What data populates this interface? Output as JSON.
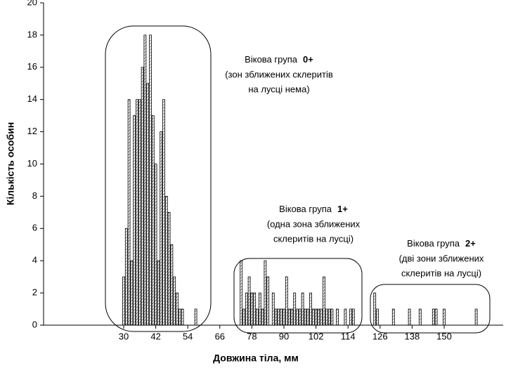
{
  "chart_data": {
    "type": "bar",
    "xlabel": "Довжина тіла, мм",
    "ylabel": "Кількість особин",
    "x": [
      30,
      31,
      32,
      33,
      34,
      35,
      36,
      37,
      38,
      39,
      40,
      41,
      42,
      43,
      44,
      45,
      46,
      47,
      48,
      49,
      50,
      51,
      52,
      57,
      74,
      75,
      76,
      77,
      78,
      79,
      80,
      81,
      82,
      83,
      84,
      86,
      87,
      88,
      89,
      90,
      91,
      92,
      93,
      94,
      95,
      96,
      97,
      98,
      99,
      100,
      101,
      102,
      103,
      104,
      105,
      106,
      107,
      108,
      110,
      113,
      115,
      116,
      124,
      125,
      131,
      137,
      141,
      146,
      147,
      150,
      162
    ],
    "values": [
      3,
      6,
      14,
      4,
      13,
      14,
      14,
      16,
      18,
      15,
      18,
      13,
      10,
      4,
      12,
      14,
      8,
      7,
      5,
      3,
      2,
      1,
      1,
      1,
      4,
      1,
      2,
      3,
      2,
      2,
      1,
      2,
      1,
      4,
      3,
      2,
      1,
      1,
      1,
      1,
      3,
      1,
      1,
      2,
      1,
      1,
      2,
      1,
      1,
      2,
      1,
      1,
      1,
      1,
      3,
      1,
      1,
      1,
      1,
      1,
      1,
      1,
      2,
      1,
      1,
      1,
      1,
      1,
      1,
      1,
      1
    ],
    "color": "#000000",
    "xlim": [
      0,
      172
    ],
    "xticks": [
      30,
      42,
      54,
      66,
      78,
      90,
      102,
      114,
      126,
      138,
      150
    ],
    "ylim": [
      0,
      20
    ],
    "yticks": [
      0,
      2,
      4,
      6,
      8,
      10,
      12,
      14,
      16,
      18,
      20
    ],
    "annotations": [
      {
        "label": "Вікова група",
        "group": "0+",
        "lines": [
          "(зон зближених склеритів",
          "на лусці нема)"
        ]
      },
      {
        "label": "Вікова група",
        "group": "1+",
        "lines": [
          "(одна зона зближених",
          "склеритів на лусці)"
        ]
      },
      {
        "label": "Вікова група",
        "group": "2+",
        "lines": [
          "(дві зони зближених",
          "склеритів на лусці)"
        ]
      }
    ]
  }
}
